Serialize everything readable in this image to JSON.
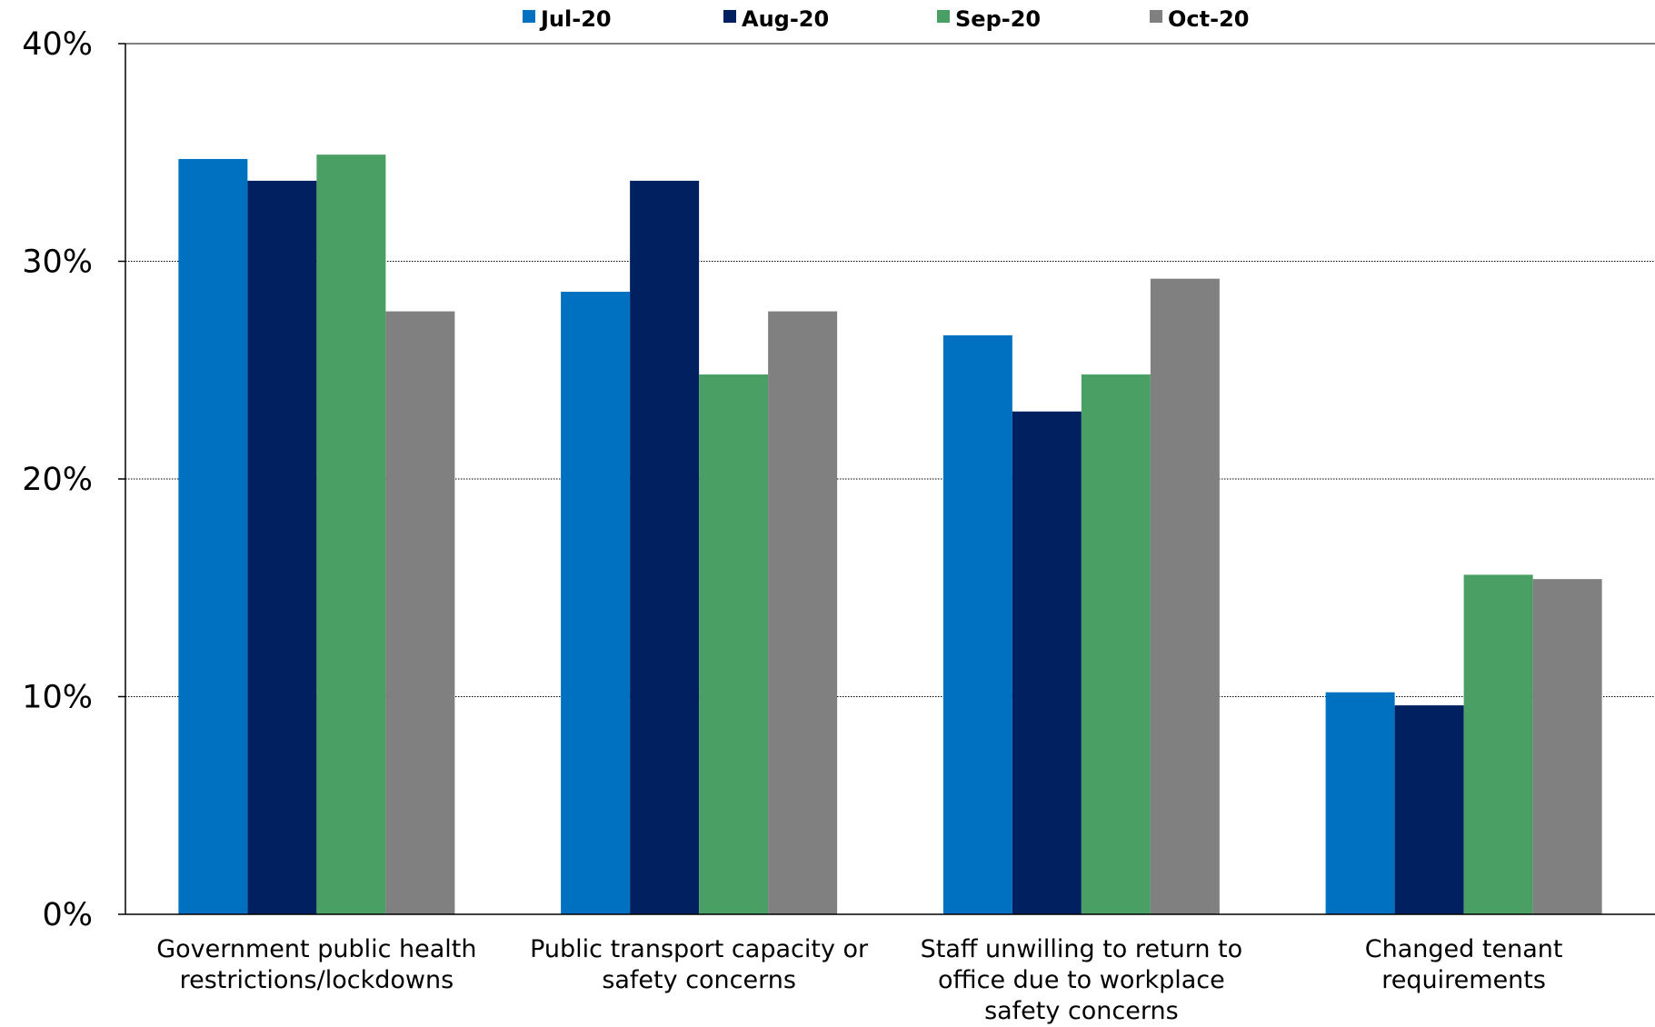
{
  "chart_data": {
    "type": "bar",
    "categories": [
      [
        "Government public health",
        "restrictions/lockdowns"
      ],
      [
        "Public transport capacity or",
        "safety concerns"
      ],
      [
        "Staff unwilling to return to",
        "office due to workplace",
        "safety concerns"
      ],
      [
        "Changed tenant",
        "requirements"
      ]
    ],
    "series": [
      {
        "name": "Jul-20",
        "color": "#0070C0",
        "values": [
          34.7,
          28.6,
          26.6,
          10.2
        ]
      },
      {
        "name": "Aug-20",
        "color": "#002060",
        "values": [
          33.7,
          33.7,
          23.1,
          9.6
        ]
      },
      {
        "name": "Sep-20",
        "color": "#4AA064",
        "values": [
          34.9,
          24.8,
          24.8,
          15.6
        ]
      },
      {
        "name": "Oct-20",
        "color": "#808080",
        "values": [
          27.7,
          27.7,
          29.2,
          15.4
        ]
      }
    ],
    "y_ticks": [
      "0%",
      "10%",
      "20%",
      "30%",
      "40%"
    ],
    "ylim": [
      0,
      40
    ],
    "gridlines": [
      10,
      20,
      30,
      40
    ],
    "legend_position": "top"
  }
}
